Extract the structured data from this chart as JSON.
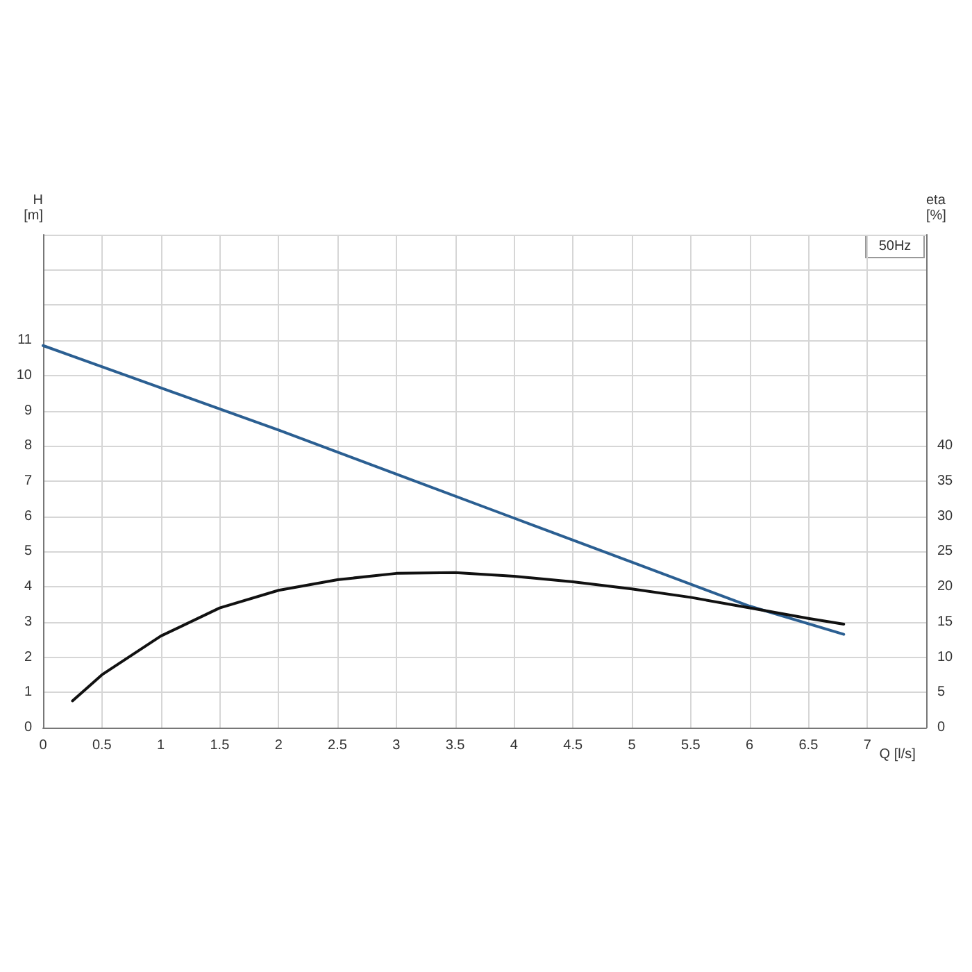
{
  "chart_data": {
    "type": "line",
    "xlabel": "Q [l/s]",
    "ylabel": "H\n[m]",
    "y2label": "eta\n[%]",
    "xlim": [
      0,
      7.5
    ],
    "xticks": [
      0,
      0.5,
      1.0,
      1.5,
      2.0,
      2.5,
      3.0,
      3.5,
      4.0,
      4.5,
      5.0,
      5.5,
      6.0,
      6.5,
      7.0
    ],
    "ylim": [
      0,
      14
    ],
    "yticks": [
      0,
      1,
      2,
      3,
      4,
      5,
      6,
      7,
      8,
      9,
      10,
      11,
      {
        "value": 12,
        "label": null
      },
      {
        "value": 13,
        "label": null
      },
      {
        "value": 14,
        "label": null
      }
    ],
    "y2lim": [
      0,
      70
    ],
    "y2ticks": [
      0,
      5,
      10,
      15,
      20,
      25,
      30,
      35,
      40
    ],
    "grid": true,
    "marker": "none",
    "line_style": "solid",
    "annotations": [
      "50Hz"
    ],
    "series": [
      {
        "color": "#2b5f92",
        "x": [
          0,
          1,
          2,
          3,
          4,
          5,
          6,
          6.8
        ],
        "values": [
          10.85,
          9.65,
          8.45,
          7.2,
          5.95,
          4.7,
          3.45,
          2.65
        ]
      },
      {
        "color": "#111111",
        "axis": "y2",
        "x": [
          0.25,
          0.5,
          1.0,
          1.5,
          2.0,
          2.5,
          3.0,
          3.5,
          4.0,
          4.5,
          5.0,
          5.5,
          6.0,
          6.5,
          6.8
        ],
        "values": [
          3.8,
          7.5,
          13,
          17,
          19.5,
          21,
          21.9,
          22,
          21.5,
          20.7,
          19.7,
          18.5,
          17,
          15.5,
          14.7
        ]
      }
    ]
  }
}
